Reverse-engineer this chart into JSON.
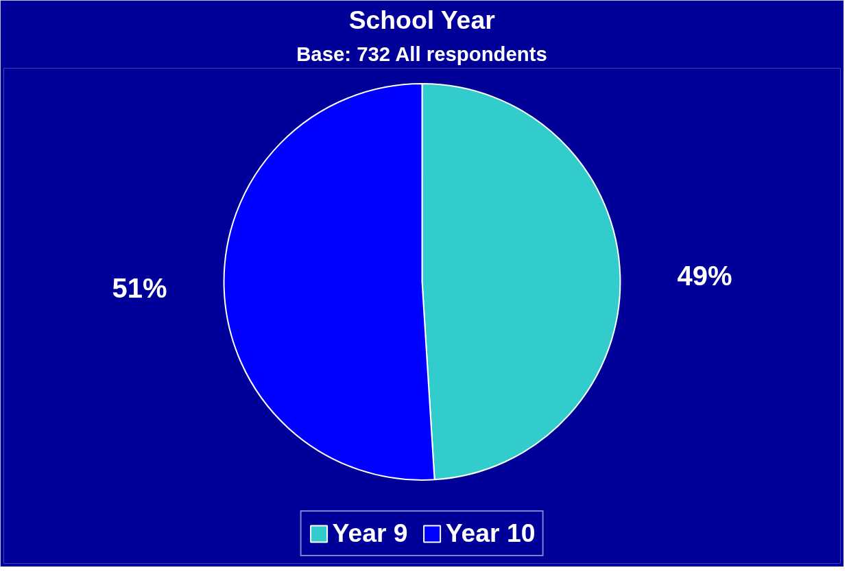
{
  "chart_data": {
    "type": "pie",
    "title": "School Year",
    "subtitle": "Base: 732 All respondents",
    "categories": [
      "Year 9",
      "Year 10"
    ],
    "values": [
      49,
      51
    ],
    "colors": [
      "#33cccc",
      "#0000ff"
    ],
    "value_labels": [
      "49%",
      "51%"
    ],
    "legend": "bottom"
  }
}
